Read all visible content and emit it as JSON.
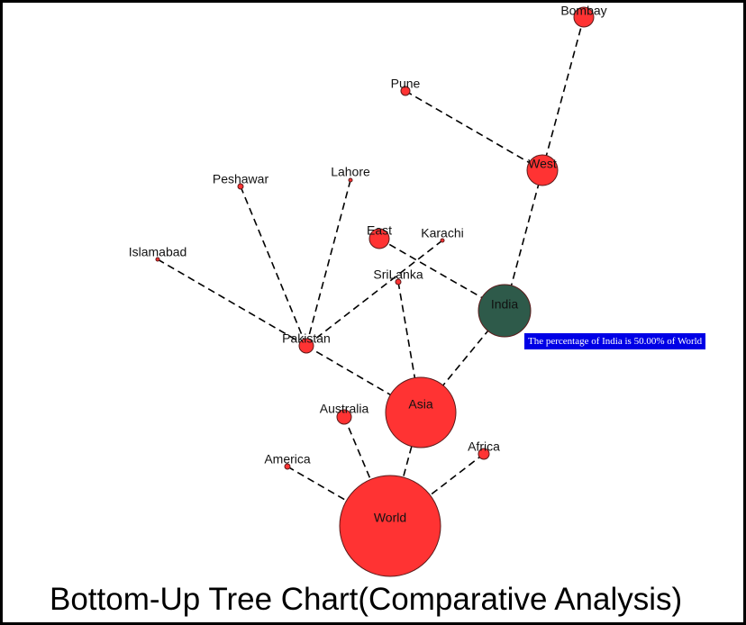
{
  "title": "Bottom-Up Tree Chart(Comparative Analysis)",
  "tooltip": "The percentage of India is 50.00% of World",
  "colors": {
    "node": "#ff3333",
    "highlight": "#2e5a4a",
    "tooltip_bg": "#0000e6",
    "edge": "#000000"
  },
  "nodes": [
    {
      "id": "World",
      "label": "World"
    },
    {
      "id": "Asia",
      "label": "Asia",
      "parent": "World"
    },
    {
      "id": "Australia",
      "label": "Australia",
      "parent": "World"
    },
    {
      "id": "America",
      "label": "America",
      "parent": "World"
    },
    {
      "id": "Africa",
      "label": "Africa",
      "parent": "World"
    },
    {
      "id": "India",
      "label": "India",
      "parent": "Asia",
      "highlighted": true
    },
    {
      "id": "Pakistan",
      "label": "Pakistan",
      "parent": "Asia"
    },
    {
      "id": "SriLanka",
      "label": "SriLanka",
      "parent": "Asia"
    },
    {
      "id": "West",
      "label": "West",
      "parent": "India"
    },
    {
      "id": "East",
      "label": "East",
      "parent": "India"
    },
    {
      "id": "Bombay",
      "label": "Bombay",
      "parent": "West"
    },
    {
      "id": "Pune",
      "label": "Pune",
      "parent": "West"
    },
    {
      "id": "Islamabad",
      "label": "Islamabad",
      "parent": "Pakistan"
    },
    {
      "id": "Peshawar",
      "label": "Peshawar",
      "parent": "Pakistan"
    },
    {
      "id": "Lahore",
      "label": "Lahore",
      "parent": "Pakistan"
    },
    {
      "id": "Karachi",
      "label": "Karachi",
      "parent": "Pakistan"
    }
  ]
}
